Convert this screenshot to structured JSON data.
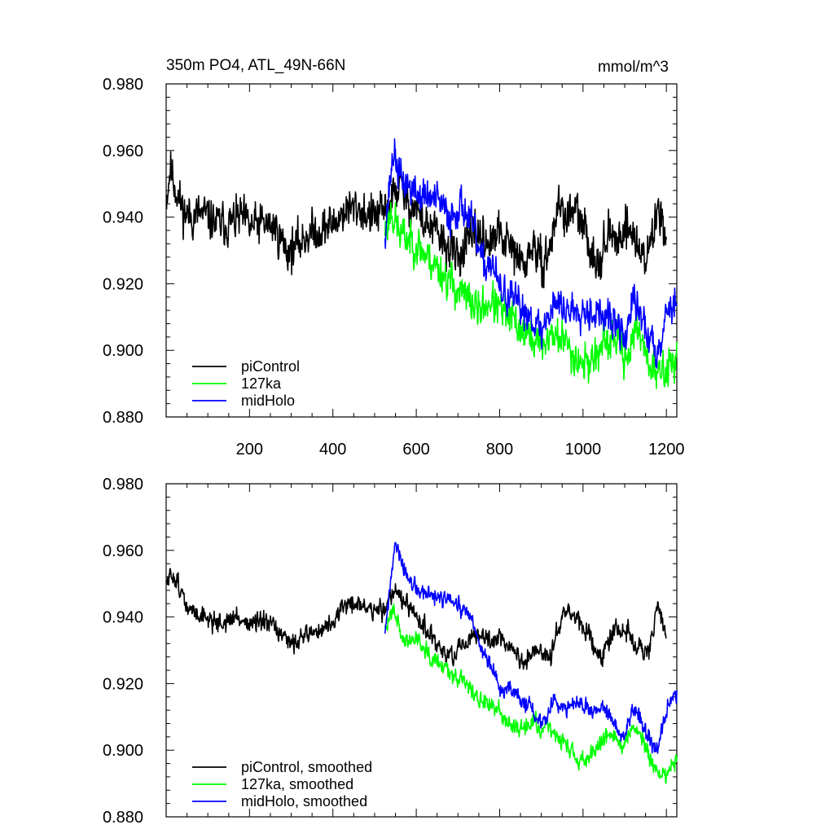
{
  "chart_data": [
    {
      "type": "line",
      "title": "350m PO4, ATL_49N-66N",
      "units": "mmol/m^3",
      "xlim": [
        0,
        1225
      ],
      "ylim": [
        0.88,
        0.98
      ],
      "x_major_ticks": [
        200,
        400,
        600,
        800,
        1000,
        1200
      ],
      "x_tick_labels": [
        "200",
        "400",
        "600",
        "800",
        "1000",
        "1200"
      ],
      "y_major_ticks": [
        0.88,
        0.9,
        0.92,
        0.94,
        0.96,
        0.98
      ],
      "y_tick_labels": [
        "0.880",
        "0.900",
        "0.920",
        "0.940",
        "0.960",
        "0.980"
      ],
      "legend_position": "bottom-left",
      "series": [
        {
          "name": "piControl",
          "color": "#000000",
          "x_range": [
            1,
            1200
          ],
          "anchors": [
            [
              1,
              0.946
            ],
            [
              10,
              0.955
            ],
            [
              20,
              0.95
            ],
            [
              40,
              0.942
            ],
            [
              60,
              0.94
            ],
            [
              80,
              0.941
            ],
            [
              100,
              0.94
            ],
            [
              120,
              0.938
            ],
            [
              150,
              0.938
            ],
            [
              180,
              0.94
            ],
            [
              200,
              0.937
            ],
            [
              230,
              0.938
            ],
            [
              260,
              0.937
            ],
            [
              290,
              0.93
            ],
            [
              310,
              0.931
            ],
            [
              340,
              0.935
            ],
            [
              370,
              0.936
            ],
            [
              400,
              0.938
            ],
            [
              430,
              0.942
            ],
            [
              460,
              0.943
            ],
            [
              490,
              0.94
            ],
            [
              520,
              0.941
            ],
            [
              540,
              0.945
            ],
            [
              560,
              0.95
            ],
            [
              580,
              0.944
            ],
            [
              600,
              0.943
            ],
            [
              620,
              0.938
            ],
            [
              650,
              0.935
            ],
            [
              680,
              0.93
            ],
            [
              700,
              0.928
            ],
            [
              720,
              0.932
            ],
            [
              750,
              0.935
            ],
            [
              780,
              0.932
            ],
            [
              800,
              0.935
            ],
            [
              830,
              0.93
            ],
            [
              860,
              0.925
            ],
            [
              880,
              0.932
            ],
            [
              900,
              0.925
            ],
            [
              920,
              0.93
            ],
            [
              940,
              0.944
            ],
            [
              960,
              0.94
            ],
            [
              980,
              0.942
            ],
            [
              1000,
              0.937
            ],
            [
              1020,
              0.93
            ],
            [
              1040,
              0.927
            ],
            [
              1060,
              0.935
            ],
            [
              1080,
              0.932
            ],
            [
              1100,
              0.938
            ],
            [
              1120,
              0.935
            ],
            [
              1140,
              0.928
            ],
            [
              1160,
              0.93
            ],
            [
              1180,
              0.943
            ],
            [
              1200,
              0.936
            ]
          ],
          "noise": 0.0075,
          "seed": 11
        },
        {
          "name": "127ka",
          "color": "#00ff00",
          "x_range": [
            525,
            1225
          ],
          "anchors": [
            [
              525,
              0.936
            ],
            [
              540,
              0.942
            ],
            [
              560,
              0.935
            ],
            [
              600,
              0.932
            ],
            [
              650,
              0.925
            ],
            [
              700,
              0.918
            ],
            [
              750,
              0.912
            ],
            [
              780,
              0.915
            ],
            [
              800,
              0.912
            ],
            [
              840,
              0.908
            ],
            [
              870,
              0.904
            ],
            [
              900,
              0.902
            ],
            [
              930,
              0.905
            ],
            [
              960,
              0.902
            ],
            [
              990,
              0.897
            ],
            [
              1010,
              0.896
            ],
            [
              1040,
              0.9
            ],
            [
              1060,
              0.902
            ],
            [
              1080,
              0.904
            ],
            [
              1100,
              0.898
            ],
            [
              1120,
              0.903
            ],
            [
              1140,
              0.906
            ],
            [
              1150,
              0.9
            ],
            [
              1170,
              0.893
            ],
            [
              1190,
              0.893
            ],
            [
              1210,
              0.896
            ],
            [
              1225,
              0.899
            ]
          ],
          "noise": 0.007,
          "seed": 23
        },
        {
          "name": "midHolo",
          "color": "#0000ff",
          "x_range": [
            525,
            1225
          ],
          "anchors": [
            [
              525,
              0.936
            ],
            [
              545,
              0.96
            ],
            [
              560,
              0.952
            ],
            [
              600,
              0.947
            ],
            [
              650,
              0.945
            ],
            [
              680,
              0.94
            ],
            [
              710,
              0.944
            ],
            [
              740,
              0.935
            ],
            [
              760,
              0.925
            ],
            [
              780,
              0.927
            ],
            [
              800,
              0.918
            ],
            [
              830,
              0.915
            ],
            [
              860,
              0.912
            ],
            [
              880,
              0.91
            ],
            [
              900,
              0.905
            ],
            [
              930,
              0.915
            ],
            [
              960,
              0.912
            ],
            [
              990,
              0.913
            ],
            [
              1020,
              0.912
            ],
            [
              1050,
              0.91
            ],
            [
              1080,
              0.908
            ],
            [
              1100,
              0.903
            ],
            [
              1120,
              0.915
            ],
            [
              1140,
              0.91
            ],
            [
              1160,
              0.903
            ],
            [
              1180,
              0.9
            ],
            [
              1200,
              0.912
            ],
            [
              1225,
              0.915
            ]
          ],
          "noise": 0.0065,
          "seed": 37
        }
      ]
    },
    {
      "type": "line",
      "title": "",
      "xlim": [
        0,
        1225
      ],
      "ylim": [
        0.88,
        0.98
      ],
      "x_major_ticks": [
        200,
        400,
        600,
        800,
        1000,
        1200
      ],
      "y_major_ticks": [
        0.88,
        0.9,
        0.92,
        0.94,
        0.96,
        0.98
      ],
      "y_tick_labels": [
        "0.880",
        "0.900",
        "0.920",
        "0.940",
        "0.960",
        "0.980"
      ],
      "legend_position": "bottom-left",
      "series": [
        {
          "name": "piControl, smoothed",
          "color": "#000000",
          "x_range": [
            1,
            1200
          ],
          "anchors": [
            [
              1,
              0.95
            ],
            [
              15,
              0.953
            ],
            [
              30,
              0.95
            ],
            [
              50,
              0.942
            ],
            [
              80,
              0.941
            ],
            [
              110,
              0.939
            ],
            [
              140,
              0.938
            ],
            [
              170,
              0.94
            ],
            [
              200,
              0.938
            ],
            [
              230,
              0.938
            ],
            [
              260,
              0.937
            ],
            [
              290,
              0.932
            ],
            [
              310,
              0.933
            ],
            [
              340,
              0.935
            ],
            [
              370,
              0.936
            ],
            [
              400,
              0.938
            ],
            [
              430,
              0.944
            ],
            [
              460,
              0.944
            ],
            [
              490,
              0.942
            ],
            [
              520,
              0.942
            ],
            [
              550,
              0.949
            ],
            [
              570,
              0.944
            ],
            [
              600,
              0.94
            ],
            [
              630,
              0.935
            ],
            [
              660,
              0.93
            ],
            [
              690,
              0.928
            ],
            [
              720,
              0.932
            ],
            [
              750,
              0.935
            ],
            [
              780,
              0.932
            ],
            [
              800,
              0.935
            ],
            [
              830,
              0.93
            ],
            [
              860,
              0.926
            ],
            [
              890,
              0.93
            ],
            [
              920,
              0.927
            ],
            [
              950,
              0.942
            ],
            [
              980,
              0.94
            ],
            [
              1010,
              0.935
            ],
            [
              1040,
              0.928
            ],
            [
              1070,
              0.935
            ],
            [
              1100,
              0.937
            ],
            [
              1130,
              0.93
            ],
            [
              1160,
              0.93
            ],
            [
              1180,
              0.943
            ],
            [
              1200,
              0.935
            ]
          ],
          "noise": 0.0035,
          "seed": 51
        },
        {
          "name": "127ka, smoothed",
          "color": "#00ff00",
          "x_range": [
            525,
            1225
          ],
          "anchors": [
            [
              525,
              0.935
            ],
            [
              545,
              0.944
            ],
            [
              570,
              0.932
            ],
            [
              600,
              0.934
            ],
            [
              640,
              0.928
            ],
            [
              680,
              0.924
            ],
            [
              720,
              0.92
            ],
            [
              760,
              0.914
            ],
            [
              800,
              0.912
            ],
            [
              840,
              0.906
            ],
            [
              880,
              0.908
            ],
            [
              920,
              0.906
            ],
            [
              960,
              0.902
            ],
            [
              990,
              0.896
            ],
            [
              1010,
              0.898
            ],
            [
              1040,
              0.903
            ],
            [
              1070,
              0.905
            ],
            [
              1100,
              0.902
            ],
            [
              1120,
              0.907
            ],
            [
              1140,
              0.905
            ],
            [
              1160,
              0.897
            ],
            [
              1180,
              0.893
            ],
            [
              1200,
              0.893
            ],
            [
              1225,
              0.897
            ]
          ],
          "noise": 0.0032,
          "seed": 63
        },
        {
          "name": "midHolo, smoothed",
          "color": "#0000ff",
          "x_range": [
            525,
            1225
          ],
          "anchors": [
            [
              525,
              0.936
            ],
            [
              550,
              0.962
            ],
            [
              570,
              0.954
            ],
            [
              600,
              0.948
            ],
            [
              640,
              0.946
            ],
            [
              680,
              0.945
            ],
            [
              710,
              0.942
            ],
            [
              730,
              0.94
            ],
            [
              750,
              0.932
            ],
            [
              770,
              0.928
            ],
            [
              800,
              0.918
            ],
            [
              830,
              0.918
            ],
            [
              860,
              0.914
            ],
            [
              880,
              0.912
            ],
            [
              900,
              0.908
            ],
            [
              930,
              0.915
            ],
            [
              960,
              0.913
            ],
            [
              990,
              0.914
            ],
            [
              1020,
              0.911
            ],
            [
              1050,
              0.913
            ],
            [
              1080,
              0.907
            ],
            [
              1100,
              0.904
            ],
            [
              1120,
              0.913
            ],
            [
              1140,
              0.909
            ],
            [
              1160,
              0.903
            ],
            [
              1180,
              0.9
            ],
            [
              1200,
              0.912
            ],
            [
              1225,
              0.917
            ]
          ],
          "noise": 0.003,
          "seed": 77
        }
      ]
    }
  ]
}
